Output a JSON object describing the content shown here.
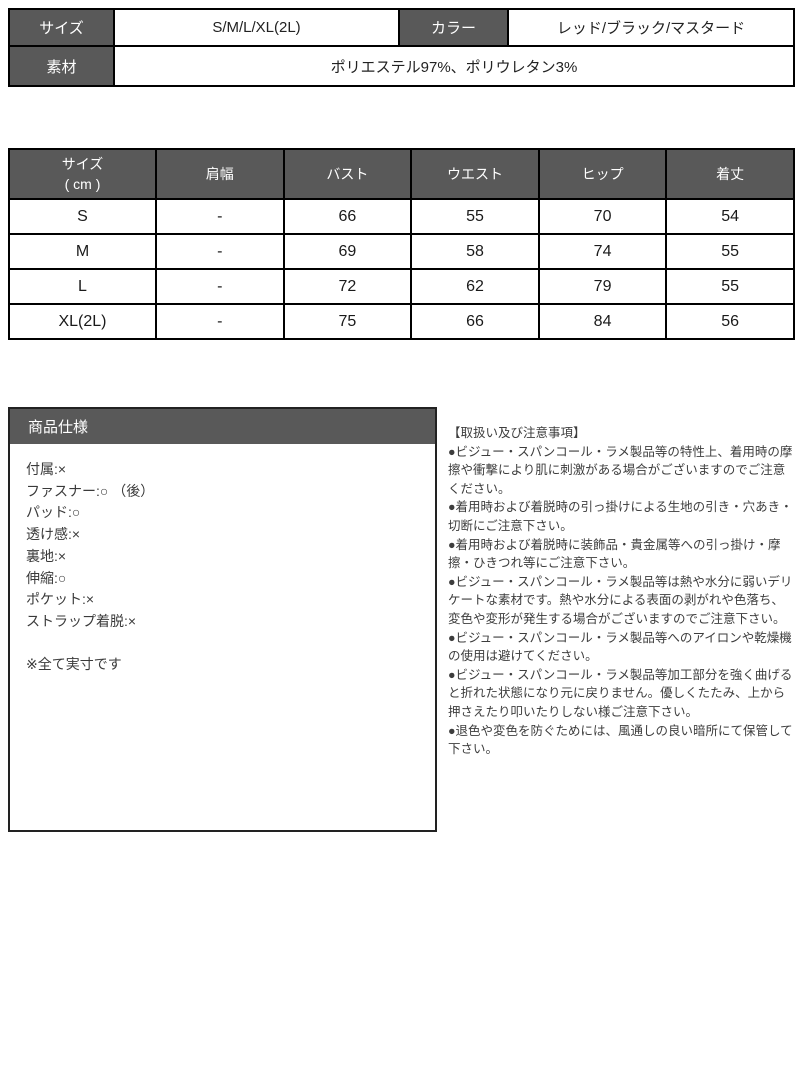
{
  "colors": {
    "header_bg": "#595959",
    "table_border": "#000000",
    "header_text": "#ffffff",
    "body_text": "#333333"
  },
  "top_table": {
    "size_label": "サイズ",
    "size_value": "S/M/L/XL(2L)",
    "color_label": "カラー",
    "color_value": "レッド/ブラック/マスタード",
    "material_label": "素材",
    "material_value": "ポリエステル97%、ポリウレタン3%"
  },
  "m_table": {
    "header_size_line1": "サイズ",
    "header_size_line2": "( cm )",
    "headers": [
      "肩幅",
      "バスト",
      "ウエスト",
      "ヒップ",
      "着丈"
    ],
    "rows": [
      [
        "S",
        "-",
        66,
        55,
        70,
        54
      ],
      [
        "M",
        "-",
        69,
        58,
        74,
        55
      ],
      [
        "L",
        "-",
        72,
        62,
        79,
        55
      ],
      [
        "XL(2L)",
        "-",
        75,
        66,
        84,
        56
      ]
    ]
  },
  "spec_box": {
    "title": "商品仕様",
    "items": [
      "付属:×",
      "ファスナー:○ （後）",
      "パッド:○",
      "透け感:×",
      "裏地:×",
      "伸縮:○",
      "ポケット:×",
      "ストラップ着脱:×"
    ],
    "footnote": "※全て実寸です"
  },
  "notes": {
    "title": "【取扱い及び注意事項】",
    "items": [
      "●ビジュー・スパンコール・ラメ製品等の特性上、着用時の摩擦や衝撃により肌に刺激がある場合がございますのでご注意ください。",
      "●着用時および着脱時の引っ掛けによる生地の引き・穴あき・切断にご注意下さい。",
      "●着用時および着脱時に装飾品・貴金属等への引っ掛け・摩擦・ひきつれ等にご注意下さい。",
      "●ビジュー・スパンコール・ラメ製品等は熱や水分に弱いデリケートな素材です。熱や水分による表面の剥がれや色落ち、変色や変形が発生する場合がございますのでご注意下さい。",
      "●ビジュー・スパンコール・ラメ製品等へのアイロンや乾燥機の使用は避けてください。",
      "●ビジュー・スパンコール・ラメ製品等加工部分を強く曲げると折れた状態になり元に戻りません。優しくたたみ、上から押さえたり叩いたりしない様ご注意下さい。",
      "●退色や変色を防ぐためには、風通しの良い暗所にて保管して下さい。"
    ]
  }
}
